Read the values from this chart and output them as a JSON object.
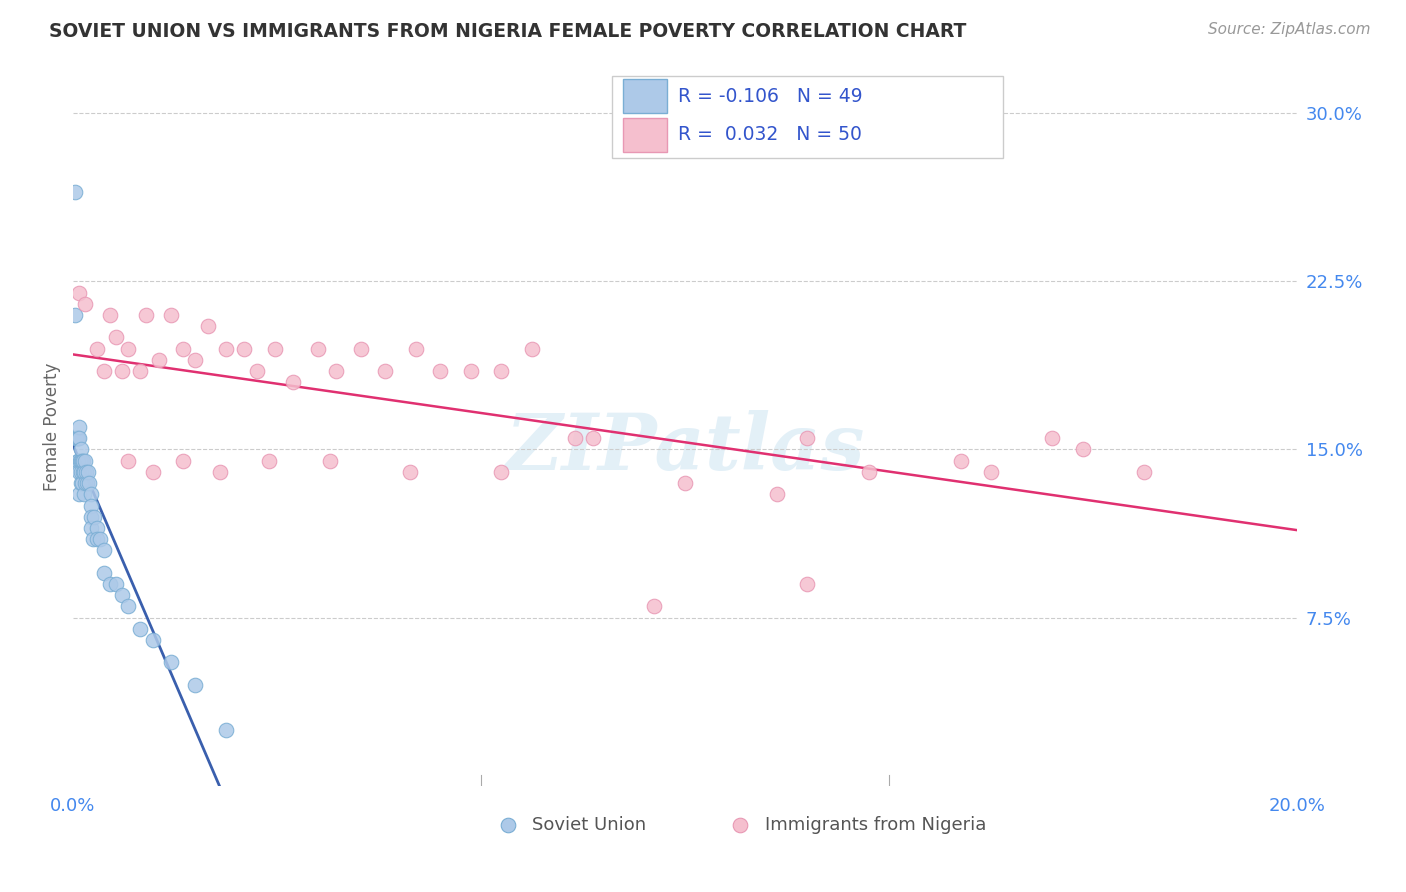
{
  "title": "SOVIET UNION VS IMMIGRANTS FROM NIGERIA FEMALE POVERTY CORRELATION CHART",
  "source": "Source: ZipAtlas.com",
  "ylabel": "Female Poverty",
  "xlim": [
    0.0,
    0.2
  ],
  "ylim": [
    0.0,
    0.32
  ],
  "background_color": "#ffffff",
  "watermark": "ZIPatlas",
  "soviet_color": "#adc9e8",
  "nigeria_color": "#f5bfce",
  "soviet_edge": "#7aaed4",
  "nigeria_edge": "#e898b4",
  "trend_soviet": "#3a5fad",
  "trend_nigeria": "#e03070",
  "trend_dash_color": "#a0bcd8",
  "soviet_x": [
    0.0003,
    0.0003,
    0.0005,
    0.0006,
    0.0007,
    0.0008,
    0.0008,
    0.0009,
    0.001,
    0.001,
    0.001,
    0.001,
    0.0012,
    0.0013,
    0.0013,
    0.0014,
    0.0014,
    0.0015,
    0.0015,
    0.0016,
    0.0017,
    0.0018,
    0.0018,
    0.002,
    0.002,
    0.0022,
    0.0023,
    0.0025,
    0.0026,
    0.003,
    0.003,
    0.003,
    0.003,
    0.0032,
    0.0035,
    0.004,
    0.004,
    0.0045,
    0.005,
    0.005,
    0.006,
    0.007,
    0.008,
    0.009,
    0.011,
    0.013,
    0.016,
    0.02,
    0.025
  ],
  "soviet_y": [
    0.265,
    0.21,
    0.155,
    0.155,
    0.155,
    0.155,
    0.145,
    0.145,
    0.16,
    0.155,
    0.14,
    0.13,
    0.145,
    0.145,
    0.135,
    0.15,
    0.14,
    0.145,
    0.135,
    0.14,
    0.145,
    0.14,
    0.13,
    0.145,
    0.135,
    0.14,
    0.135,
    0.14,
    0.135,
    0.13,
    0.125,
    0.12,
    0.115,
    0.11,
    0.12,
    0.115,
    0.11,
    0.11,
    0.105,
    0.095,
    0.09,
    0.09,
    0.085,
    0.08,
    0.07,
    0.065,
    0.055,
    0.045,
    0.025
  ],
  "nigeria_x": [
    0.001,
    0.002,
    0.004,
    0.005,
    0.006,
    0.007,
    0.008,
    0.009,
    0.011,
    0.012,
    0.014,
    0.016,
    0.018,
    0.02,
    0.022,
    0.025,
    0.028,
    0.03,
    0.033,
    0.036,
    0.04,
    0.043,
    0.047,
    0.051,
    0.056,
    0.06,
    0.065,
    0.07,
    0.075,
    0.082,
    0.009,
    0.013,
    0.018,
    0.024,
    0.032,
    0.042,
    0.055,
    0.07,
    0.085,
    0.1,
    0.115,
    0.13,
    0.15,
    0.12,
    0.145,
    0.16,
    0.165,
    0.175,
    0.12,
    0.095
  ],
  "nigeria_y": [
    0.22,
    0.215,
    0.195,
    0.185,
    0.21,
    0.2,
    0.185,
    0.195,
    0.185,
    0.21,
    0.19,
    0.21,
    0.195,
    0.19,
    0.205,
    0.195,
    0.195,
    0.185,
    0.195,
    0.18,
    0.195,
    0.185,
    0.195,
    0.185,
    0.195,
    0.185,
    0.185,
    0.185,
    0.195,
    0.155,
    0.145,
    0.14,
    0.145,
    0.14,
    0.145,
    0.145,
    0.14,
    0.14,
    0.155,
    0.135,
    0.13,
    0.14,
    0.14,
    0.155,
    0.145,
    0.155,
    0.15,
    0.14,
    0.09,
    0.08
  ]
}
